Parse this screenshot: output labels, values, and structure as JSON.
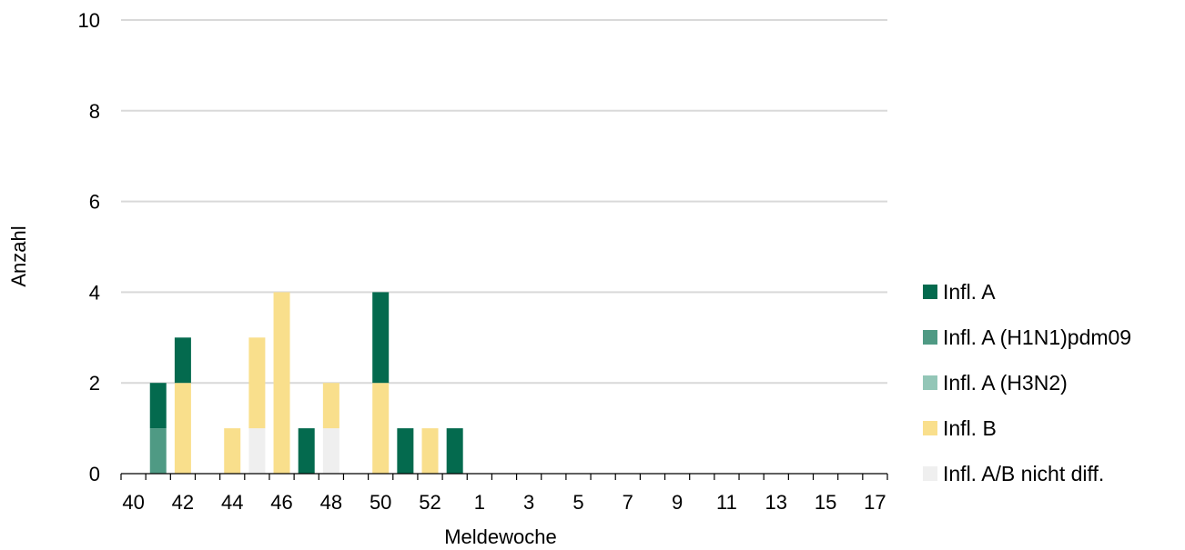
{
  "chart_data": {
    "type": "bar",
    "stacked": true,
    "xlabel": "Meldewoche",
    "ylabel": "Anzahl",
    "ylim": [
      0,
      10
    ],
    "yticks": [
      0,
      2,
      4,
      6,
      8,
      10
    ],
    "grid": true,
    "legend_position": "right",
    "categories": [
      "40",
      "41",
      "42",
      "43",
      "44",
      "45",
      "46",
      "47",
      "48",
      "49",
      "50",
      "51",
      "52",
      "53",
      "1",
      "2",
      "3",
      "4",
      "5",
      "6",
      "7",
      "8",
      "9",
      "10",
      "11",
      "12",
      "13",
      "14",
      "15",
      "16",
      "17"
    ],
    "tick_labels": [
      "40",
      "42",
      "44",
      "46",
      "48",
      "50",
      "52",
      "1",
      "3",
      "5",
      "7",
      "9",
      "11",
      "13",
      "15",
      "17"
    ],
    "series": [
      {
        "name": "Infl. A (H1N1)pdm09",
        "color": "#4f9a84",
        "values": [
          0,
          1,
          0,
          0,
          0,
          0,
          0,
          0,
          0,
          0,
          0,
          0,
          0,
          0,
          0,
          0,
          0,
          0,
          0,
          0,
          0,
          0,
          0,
          0,
          0,
          0,
          0,
          0,
          0,
          0,
          0
        ]
      },
      {
        "name": "Infl. A (H3N2)",
        "color": "#93c6b7",
        "values": [
          0,
          0,
          0,
          0,
          0,
          0,
          0,
          0,
          0,
          0,
          0,
          0,
          0,
          0,
          0,
          0,
          0,
          0,
          0,
          0,
          0,
          0,
          0,
          0,
          0,
          0,
          0,
          0,
          0,
          0,
          0
        ]
      },
      {
        "name": "Infl. A/B nicht diff.",
        "color": "#efefef",
        "values": [
          0,
          0,
          0,
          0,
          0,
          1,
          0,
          0,
          1,
          0,
          0,
          0,
          0,
          0,
          0,
          0,
          0,
          0,
          0,
          0,
          0,
          0,
          0,
          0,
          0,
          0,
          0,
          0,
          0,
          0,
          0
        ]
      },
      {
        "name": "Infl. B",
        "color": "#f9df8c",
        "values": [
          0,
          0,
          2,
          0,
          1,
          2,
          4,
          0,
          1,
          0,
          2,
          0,
          1,
          0,
          0,
          0,
          0,
          0,
          0,
          0,
          0,
          0,
          0,
          0,
          0,
          0,
          0,
          0,
          0,
          0,
          0
        ]
      },
      {
        "name": "Infl. A",
        "color": "#046a4e",
        "values": [
          0,
          1,
          1,
          0,
          0,
          0,
          0,
          1,
          0,
          0,
          2,
          1,
          0,
          1,
          0,
          0,
          0,
          0,
          0,
          0,
          0,
          0,
          0,
          0,
          0,
          0,
          0,
          0,
          0,
          0,
          0
        ]
      }
    ],
    "legend": [
      {
        "label": "Infl. A",
        "color": "#046a4e"
      },
      {
        "label": "Infl. A (H1N1)pdm09",
        "color": "#4f9a84"
      },
      {
        "label": "Infl. A (H3N2)",
        "color": "#93c6b7"
      },
      {
        "label": "Infl. B",
        "color": "#f9df8c"
      },
      {
        "label": "Infl. A/B nicht diff.",
        "color": "#efefef"
      }
    ]
  }
}
